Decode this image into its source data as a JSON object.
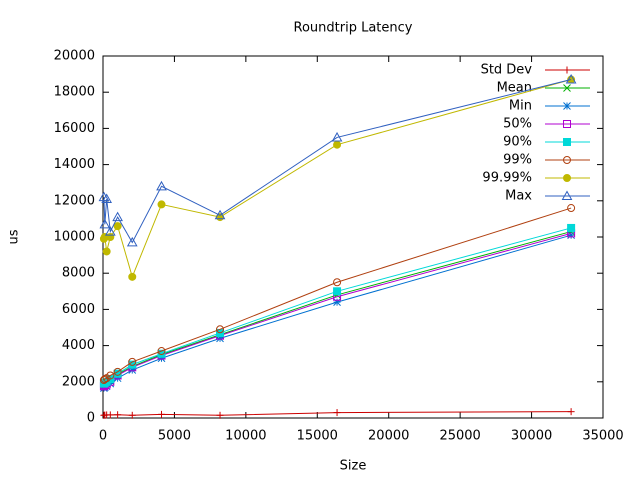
{
  "chart_data": {
    "type": "line",
    "title": "Roundtrip Latency",
    "x_label": "Size",
    "y_label": "us",
    "x": [
      64,
      128,
      256,
      512,
      1024,
      2048,
      4096,
      8192,
      16384,
      32768
    ],
    "xlim": [
      0,
      35000
    ],
    "xticks": [
      0,
      5000,
      10000,
      15000,
      20000,
      25000,
      30000,
      35000
    ],
    "ylim": [
      0,
      20000
    ],
    "yticks": [
      0,
      2000,
      4000,
      6000,
      8000,
      10000,
      12000,
      14000,
      16000,
      18000,
      20000
    ],
    "legend": "top-right",
    "series": [
      {
        "name": "Std Dev",
        "color": "#cc0000",
        "values": [
          150,
          160,
          170,
          170,
          180,
          150,
          200,
          150,
          300,
          350
        ]
      },
      {
        "name": "Mean",
        "color": "#00b000",
        "values": [
          1800,
          1850,
          1900,
          2050,
          2400,
          2850,
          3500,
          4600,
          6800,
          10300
        ]
      },
      {
        "name": "Min",
        "color": "#0070d0",
        "values": [
          1650,
          1700,
          1750,
          1900,
          2200,
          2650,
          3300,
          4400,
          6400,
          10100
        ]
      },
      {
        "name": "50%",
        "color": "#b000d0",
        "values": [
          1750,
          1800,
          1850,
          2000,
          2350,
          2800,
          3450,
          4550,
          6700,
          10200
        ]
      },
      {
        "name": "90%",
        "color": "#00d8d8",
        "values": [
          1900,
          1950,
          2000,
          2150,
          2450,
          2950,
          3550,
          4700,
          7000,
          10500
        ]
      },
      {
        "name": "99%",
        "color": "#b04010",
        "values": [
          2100,
          2150,
          2200,
          2350,
          2550,
          3100,
          3700,
          4900,
          7500,
          11600
        ]
      },
      {
        "name": "99.99%",
        "color": "#c0b800",
        "values": [
          9900,
          10000,
          9200,
          10000,
          10600,
          7800,
          11800,
          11100,
          15100,
          18700
        ]
      },
      {
        "name": "Max",
        "color": "#3060c0",
        "values": [
          12200,
          10700,
          12100,
          10300,
          11100,
          9700,
          12800,
          11200,
          15500,
          18700
        ]
      }
    ]
  }
}
